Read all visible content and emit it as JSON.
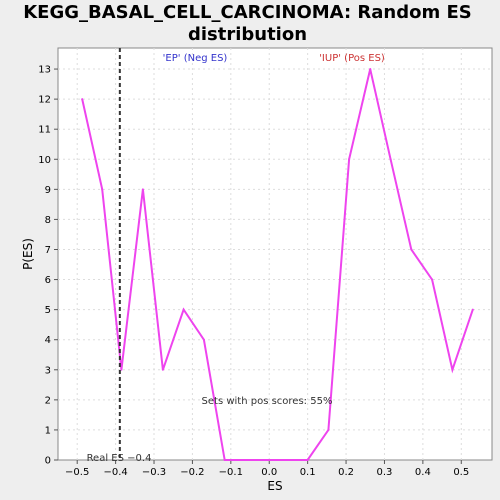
{
  "chart_data": {
    "type": "line",
    "title_line1": "KEGG_BASAL_CELL_CARCINOMA: Random ES",
    "title_line2": "distribution",
    "xlabel": "ES",
    "ylabel": "P(ES)",
    "xlim": [
      -0.55,
      0.58
    ],
    "ylim": [
      0,
      13.7
    ],
    "xticks": [
      -0.5,
      -0.4,
      -0.3,
      -0.2,
      -0.1,
      0.0,
      0.1,
      0.2,
      0.3,
      0.4,
      0.5
    ],
    "xtick_labels": [
      "−0.5",
      "−0.4",
      "−0.3",
      "−0.2",
      "−0.1",
      "0.0",
      "0.1",
      "0.2",
      "0.3",
      "0.4",
      "0.5"
    ],
    "yticks": [
      0,
      1,
      2,
      3,
      4,
      5,
      6,
      7,
      8,
      9,
      10,
      11,
      12,
      13
    ],
    "grid": true,
    "series": [
      {
        "color": "#ee44ee",
        "x": [
          -0.487,
          -0.435,
          -0.385,
          -0.329,
          -0.277,
          -0.223,
          -0.17,
          -0.116,
          -0.062,
          -0.008,
          0.047,
          0.1,
          0.154,
          0.208,
          0.263,
          0.316,
          0.37,
          0.424,
          0.477,
          0.53
        ],
        "y": [
          12,
          9,
          3,
          9,
          3,
          5,
          4,
          0,
          0,
          0,
          0,
          0,
          1,
          10,
          13,
          10,
          7,
          6,
          3,
          5
        ]
      }
    ],
    "real_es": -0.389,
    "real_es_label": "Real ES −0.4",
    "neg_label": "'EP' (Neg ES)",
    "neg_color": "#3333cc",
    "pos_label": "'IUP' (Pos ES)",
    "pos_color": "#cc3333",
    "pos_scores_label": "Sets with pos scores: 55%"
  }
}
